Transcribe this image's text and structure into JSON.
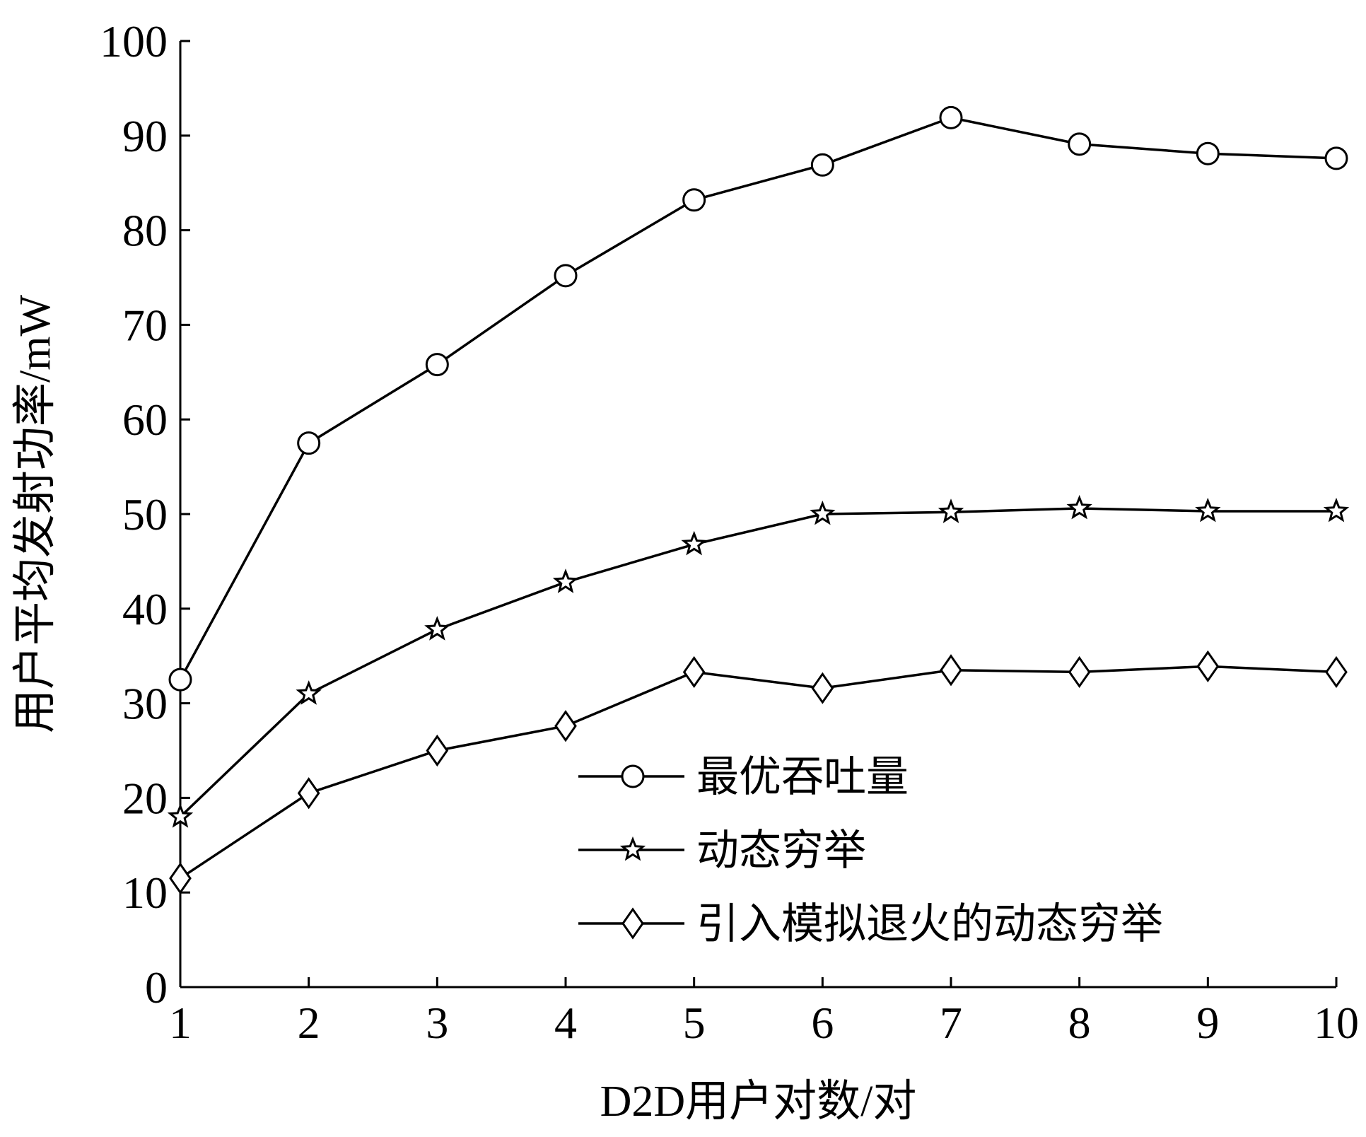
{
  "chart_data": {
    "type": "line",
    "xlabel": "D2D用户对数/对",
    "ylabel": "用户平均发射功率/mW",
    "x": [
      1,
      2,
      3,
      4,
      5,
      6,
      7,
      8,
      9,
      10
    ],
    "xlim": [
      1,
      10
    ],
    "ylim": [
      0,
      100
    ],
    "xticks": [
      "1",
      "2",
      "3",
      "4",
      "5",
      "6",
      "7",
      "8",
      "9",
      "10"
    ],
    "yticks": [
      "0",
      "10",
      "20",
      "30",
      "40",
      "50",
      "60",
      "70",
      "80",
      "90",
      "100"
    ],
    "grid": false,
    "legend_position": "bottom-right",
    "series": [
      {
        "name": "最优吞吐量",
        "marker": "circle",
        "color": "#000000",
        "values": [
          32.5,
          57.5,
          65.8,
          75.2,
          83.2,
          86.9,
          91.9,
          89.1,
          88.1,
          87.6
        ]
      },
      {
        "name": "动态穷举",
        "marker": "star",
        "color": "#000000",
        "values": [
          18.0,
          31.0,
          37.8,
          42.8,
          46.8,
          50.0,
          50.2,
          50.6,
          50.3,
          50.3
        ]
      },
      {
        "name": "引入模拟退火的动态穷举",
        "marker": "diamond",
        "color": "#000000",
        "values": [
          11.5,
          20.5,
          25.0,
          27.6,
          33.3,
          31.6,
          33.5,
          33.3,
          33.9,
          33.3
        ]
      }
    ]
  }
}
